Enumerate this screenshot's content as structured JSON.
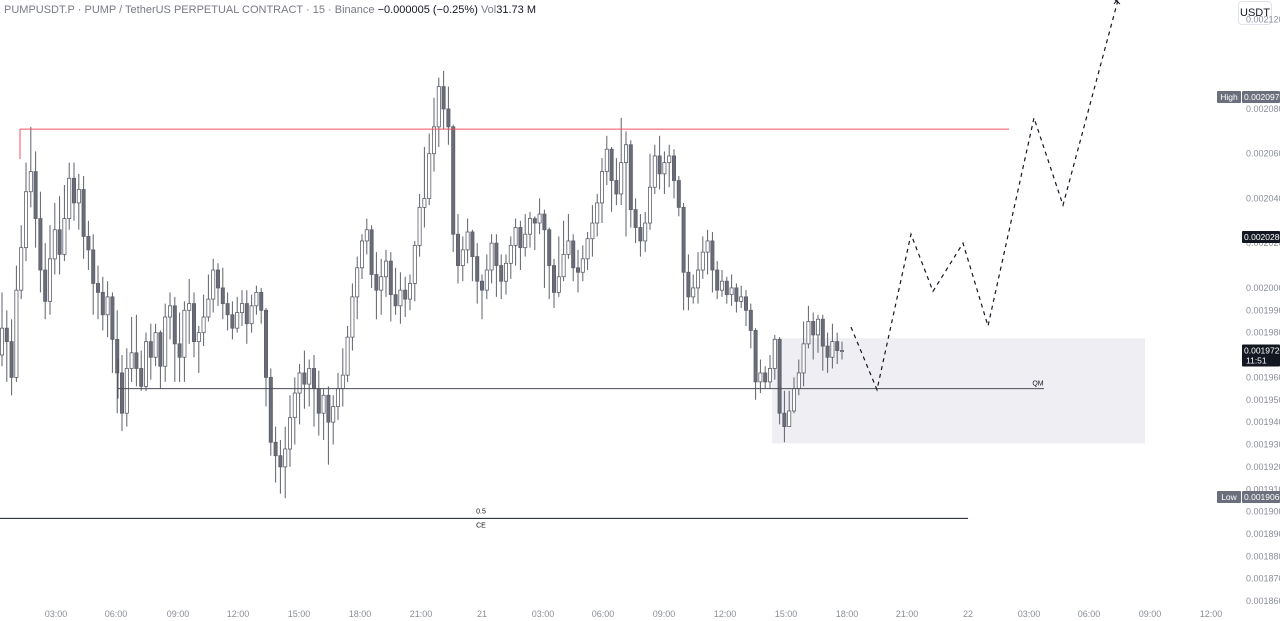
{
  "header": {
    "symbol": "PUMPUSDT.P",
    "separator1": " · ",
    "pair": "PUMP / TetherUS PERPETUAL CONTRACT",
    "separator2": " · ",
    "interval": "15",
    "separator3": " · ",
    "exchange": "Binance",
    "change": "−0.000005 (−0.25%)",
    "vol_label": "Vol",
    "vol_value": "31.73 M"
  },
  "currency_button": "USDT",
  "chart_data": {
    "type": "candlestick",
    "ylim": [
      0.0018605,
      0.0021287
    ],
    "price_axis_ticks": [
      "0.0021200",
      "0.0020800",
      "0.0020600",
      "0.0020400",
      "0.0020200",
      "0.0020000",
      "0.0019900",
      "0.0019800",
      "0.0019600",
      "0.0019500",
      "0.0019400",
      "0.0019300",
      "0.0019200",
      "0.0019100",
      "0.0019000",
      "0.0018900",
      "0.0018800",
      "0.0018700",
      "0.0018600"
    ],
    "time_axis_ticks": [
      "03:00",
      "06:00",
      "09:00",
      "12:00",
      "15:00",
      "18:00",
      "21:00",
      "21",
      "03:00",
      "06:00",
      "09:00",
      "12:00",
      "15:00",
      "18:00",
      "21:00",
      "22",
      "03:00",
      "06:00",
      "09:00",
      "12:00"
    ],
    "price_tags": {
      "high": {
        "label": "High",
        "value": "0.0020970"
      },
      "level": {
        "value": "0.0020280"
      },
      "current": {
        "value": "0.0019720",
        "countdown": "11:51"
      },
      "low": {
        "label": "Low",
        "value": "0.0019060"
      }
    },
    "annotations": {
      "resistance_price": 0.002071,
      "support_price": 0.001955,
      "support_label": "QM",
      "ce_price": 0.001897,
      "ce_label_top": "0.5",
      "ce_label_bottom": "CE",
      "zone_top": 0.0019775,
      "zone_bottom": 0.0019305,
      "projection_prices": [
        0.0019825,
        0.0019545,
        0.002024,
        0.0019985,
        0.00202,
        0.001983,
        0.002076,
        0.002037,
        0.0021287
      ]
    },
    "candles": [
      [
        0.00197,
        0.001982,
        0.001998,
        0.001965
      ],
      [
        0.001982,
        0.001976,
        0.00199,
        0.001958
      ],
      [
        0.001976,
        0.00196,
        0.001986,
        0.001952
      ],
      [
        0.00196,
        0.001999,
        0.00201,
        0.001958
      ],
      [
        0.001999,
        0.002018,
        0.002028,
        0.001995
      ],
      [
        0.002018,
        0.002043,
        0.002056,
        0.002012
      ],
      [
        0.002043,
        0.002052,
        0.002072,
        0.002036
      ],
      [
        0.002052,
        0.002031,
        0.002061,
        0.002018
      ],
      [
        0.002031,
        0.002008,
        0.002043,
        0.001998
      ],
      [
        0.002008,
        0.001994,
        0.00202,
        0.001986
      ],
      [
        0.001994,
        0.002013,
        0.002028,
        0.001988
      ],
      [
        0.002013,
        0.002026,
        0.002038,
        0.002006
      ],
      [
        0.002026,
        0.002015,
        0.002041,
        0.002006
      ],
      [
        0.002015,
        0.002031,
        0.002046,
        0.002012
      ],
      [
        0.002031,
        0.002049,
        0.002056,
        0.002026
      ],
      [
        0.002049,
        0.002038,
        0.002056,
        0.00203
      ],
      [
        0.002038,
        0.002044,
        0.002051,
        0.002026
      ],
      [
        0.002044,
        0.002023,
        0.00205,
        0.002013
      ],
      [
        0.002023,
        0.002017,
        0.00203,
        0.002008
      ],
      [
        0.002017,
        0.002002,
        0.002024,
        0.001988
      ],
      [
        0.002002,
        0.001998,
        0.00201,
        0.001986
      ],
      [
        0.001998,
        0.001988,
        0.002005,
        0.001981
      ],
      [
        0.001988,
        0.001996,
        0.002003,
        0.001978
      ],
      [
        0.001996,
        0.001977,
        0.001998,
        0.001962
      ],
      [
        0.001977,
        0.001962,
        0.00199,
        0.001944
      ],
      [
        0.001962,
        0.001944,
        0.00197,
        0.001936
      ],
      [
        0.001944,
        0.001964,
        0.001973,
        0.001938
      ],
      [
        0.001964,
        0.001971,
        0.001987,
        0.001958
      ],
      [
        0.001971,
        0.001964,
        0.001988,
        0.001956
      ],
      [
        0.001964,
        0.001956,
        0.001972,
        0.001954
      ],
      [
        0.001956,
        0.001976,
        0.00198,
        0.001954
      ],
      [
        0.001976,
        0.001969,
        0.001984,
        0.001959
      ],
      [
        0.001969,
        0.00198,
        0.001984,
        0.001965
      ],
      [
        0.00198,
        0.001965,
        0.001981,
        0.001955
      ],
      [
        0.001965,
        0.001987,
        0.001993,
        0.001958
      ],
      [
        0.001987,
        0.001992,
        0.001998,
        0.001977
      ],
      [
        0.001992,
        0.001975,
        0.001996,
        0.001958
      ],
      [
        0.001975,
        0.001969,
        0.001989,
        0.001958
      ],
      [
        0.001969,
        0.00199,
        0.001994,
        0.001958
      ],
      [
        0.00199,
        0.001993,
        0.002004,
        0.001975
      ],
      [
        0.001993,
        0.001976,
        0.001998,
        0.001969
      ],
      [
        0.001976,
        0.00198,
        0.001983,
        0.001962
      ],
      [
        0.00198,
        0.001987,
        0.001997,
        0.001974
      ],
      [
        0.001987,
        0.001995,
        0.002006,
        0.001985
      ],
      [
        0.001995,
        0.002008,
        0.002013,
        0.001989
      ],
      [
        0.002008,
        0.002,
        0.002011,
        0.001992
      ],
      [
        0.002,
        0.001993,
        0.002009,
        0.001986
      ],
      [
        0.001993,
        0.001988,
        0.001998,
        0.001981
      ],
      [
        0.001988,
        0.001982,
        0.001994,
        0.001977
      ],
      [
        0.001982,
        0.001989,
        0.001996,
        0.00198
      ],
      [
        0.001989,
        0.001993,
        0.001999,
        0.001983
      ],
      [
        0.001993,
        0.001984,
        0.001999,
        0.001975
      ],
      [
        0.001984,
        0.001992,
        0.001997,
        0.00198
      ],
      [
        0.001992,
        0.001998,
        0.002001,
        0.001988
      ],
      [
        0.001998,
        0.00199,
        0.002,
        0.001984
      ],
      [
        0.00199,
        0.00196,
        0.001991,
        0.001947
      ],
      [
        0.00196,
        0.001931,
        0.001964,
        0.001925
      ],
      [
        0.001931,
        0.001925,
        0.001938,
        0.001913
      ],
      [
        0.001925,
        0.00192,
        0.001932,
        0.001908
      ],
      [
        0.00192,
        0.001928,
        0.001938,
        0.001906
      ],
      [
        0.001928,
        0.001942,
        0.001952,
        0.00192
      ],
      [
        0.001942,
        0.001953,
        0.00196,
        0.00193
      ],
      [
        0.001953,
        0.001962,
        0.001966,
        0.001939
      ],
      [
        0.001962,
        0.001957,
        0.001972,
        0.001946
      ],
      [
        0.001957,
        0.001964,
        0.001968,
        0.001947
      ],
      [
        0.001964,
        0.001955,
        0.00197,
        0.001938
      ],
      [
        0.001955,
        0.001944,
        0.001963,
        0.001934
      ],
      [
        0.001944,
        0.001952,
        0.001955,
        0.001932
      ],
      [
        0.001952,
        0.00194,
        0.001956,
        0.001921
      ],
      [
        0.00194,
        0.001947,
        0.001952,
        0.00193
      ],
      [
        0.001947,
        0.001955,
        0.001962,
        0.001941
      ],
      [
        0.001955,
        0.001961,
        0.001973,
        0.001947
      ],
      [
        0.001961,
        0.001978,
        0.001983,
        0.001958
      ],
      [
        0.001978,
        0.001996,
        0.002002,
        0.001972
      ],
      [
        0.001996,
        0.002009,
        0.002014,
        0.001986
      ],
      [
        0.002009,
        0.002021,
        0.002024,
        0.002004
      ],
      [
        0.002021,
        0.002026,
        0.002031,
        0.002015
      ],
      [
        0.002026,
        0.002006,
        0.002028,
        0.002
      ],
      [
        0.002006,
        0.001999,
        0.002016,
        0.001986
      ],
      [
        0.001999,
        0.002005,
        0.002013,
        0.001988
      ],
      [
        0.002005,
        0.002012,
        0.002017,
        0.001996
      ],
      [
        0.002012,
        0.001997,
        0.002016,
        0.001985
      ],
      [
        0.001997,
        0.001992,
        0.002009,
        0.001988
      ],
      [
        0.001992,
        0.001999,
        0.002007,
        0.001984
      ],
      [
        0.001999,
        0.001995,
        0.002005,
        0.001987
      ],
      [
        0.001995,
        0.002002,
        0.002006,
        0.00199
      ],
      [
        0.002002,
        0.002019,
        0.002021,
        0.001994
      ],
      [
        0.002019,
        0.002036,
        0.002042,
        0.002014
      ],
      [
        0.002036,
        0.00204,
        0.002063,
        0.002027
      ],
      [
        0.00204,
        0.00206,
        0.002069,
        0.002037
      ],
      [
        0.00206,
        0.002072,
        0.002085,
        0.002052
      ],
      [
        0.002072,
        0.00209,
        0.002094,
        0.002063
      ],
      [
        0.00209,
        0.00208,
        0.002097,
        0.002071
      ],
      [
        0.00208,
        0.002072,
        0.00209,
        0.002064
      ],
      [
        0.002072,
        0.002024,
        0.002073,
        0.002016
      ],
      [
        0.002024,
        0.00201,
        0.002033,
        0.002002
      ],
      [
        0.00201,
        0.002017,
        0.002023,
        0.002003
      ],
      [
        0.002017,
        0.002025,
        0.002031,
        0.002011
      ],
      [
        0.002025,
        0.002014,
        0.002026,
        0.002003
      ],
      [
        0.002014,
        0.002003,
        0.00202,
        0.001993
      ],
      [
        0.002003,
        0.001999,
        0.002006,
        0.001986
      ],
      [
        0.001999,
        0.002008,
        0.002015,
        0.001995
      ],
      [
        0.002008,
        0.00202,
        0.002024,
        0.002002
      ],
      [
        0.00202,
        0.00201,
        0.002024,
        0.001996
      ],
      [
        0.00201,
        0.002003,
        0.002015,
        0.001995
      ],
      [
        0.002003,
        0.002011,
        0.002015,
        0.001997
      ],
      [
        0.002011,
        0.002019,
        0.002023,
        0.002004
      ],
      [
        0.002019,
        0.002027,
        0.002031,
        0.00201
      ],
      [
        0.002027,
        0.002018,
        0.00203,
        0.002008
      ],
      [
        0.002018,
        0.002024,
        0.002033,
        0.002014
      ],
      [
        0.002024,
        0.002031,
        0.002034,
        0.002018
      ],
      [
        0.002031,
        0.002029,
        0.002032,
        0.002017
      ],
      [
        0.002029,
        0.002033,
        0.00204,
        0.002024
      ],
      [
        0.002033,
        0.002026,
        0.002035,
        0.002
      ],
      [
        0.002026,
        0.00201,
        0.002027,
        0.001995
      ],
      [
        0.00201,
        0.001998,
        0.002013,
        0.001991
      ],
      [
        0.001998,
        0.002005,
        0.002023,
        0.001996
      ],
      [
        0.002005,
        0.002015,
        0.00203,
        0.002003
      ],
      [
        0.002015,
        0.002021,
        0.002033,
        0.002013
      ],
      [
        0.002021,
        0.002009,
        0.002024,
        0.002003
      ],
      [
        0.002009,
        0.002007,
        0.002017,
        0.001998
      ],
      [
        0.002007,
        0.002013,
        0.002019,
        0.002003
      ],
      [
        0.002013,
        0.002022,
        0.002025,
        0.002008
      ],
      [
        0.002022,
        0.002029,
        0.002037,
        0.002014
      ],
      [
        0.002029,
        0.002038,
        0.002042,
        0.002023
      ],
      [
        0.002038,
        0.002052,
        0.002058,
        0.002029
      ],
      [
        0.002052,
        0.002062,
        0.002068,
        0.002046
      ],
      [
        0.002062,
        0.002048,
        0.002063,
        0.002034
      ],
      [
        0.002048,
        0.002042,
        0.002058,
        0.002037
      ],
      [
        0.002042,
        0.002056,
        0.002076,
        0.002037
      ],
      [
        0.002056,
        0.002064,
        0.00207,
        0.002023
      ],
      [
        0.002064,
        0.002035,
        0.002066,
        0.002027
      ],
      [
        0.002035,
        0.002027,
        0.00204,
        0.00202
      ],
      [
        0.002027,
        0.002021,
        0.002033,
        0.002014
      ],
      [
        0.002021,
        0.002029,
        0.002034,
        0.002016
      ],
      [
        0.002029,
        0.002045,
        0.00206,
        0.002026
      ],
      [
        0.002045,
        0.002059,
        0.002064,
        0.002042
      ],
      [
        0.002059,
        0.002051,
        0.002068,
        0.002044
      ],
      [
        0.002051,
        0.002056,
        0.002061,
        0.002042
      ],
      [
        0.002056,
        0.002059,
        0.002064,
        0.002045
      ],
      [
        0.002059,
        0.002048,
        0.002062,
        0.00204
      ],
      [
        0.002048,
        0.002036,
        0.00205,
        0.002032
      ],
      [
        0.002036,
        0.002007,
        0.002038,
        0.00199
      ],
      [
        0.002007,
        0.001996,
        0.002015,
        0.00199
      ],
      [
        0.001996,
        0.002,
        0.002006,
        0.001993
      ],
      [
        0.002,
        0.002008,
        0.002016,
        0.001993
      ],
      [
        0.002008,
        0.002016,
        0.002023,
        0.002004
      ],
      [
        0.002016,
        0.002021,
        0.002026,
        0.002006
      ],
      [
        0.002021,
        0.002008,
        0.002025,
        0.001998
      ],
      [
        0.002008,
        0.001999,
        0.002012,
        0.001995
      ],
      [
        0.001999,
        0.002003,
        0.002008,
        0.001996
      ],
      [
        0.002003,
        0.001997,
        0.002005,
        0.001993
      ],
      [
        0.001997,
        0.002,
        0.002006,
        0.001992
      ],
      [
        0.002,
        0.001994,
        0.002002,
        0.001989
      ],
      [
        0.001994,
        0.001996,
        0.002001,
        0.001991
      ],
      [
        0.001996,
        0.00199,
        0.001999,
        0.001983
      ],
      [
        0.00199,
        0.001981,
        0.001993,
        0.001973
      ],
      [
        0.001981,
        0.001958,
        0.001982,
        0.00195
      ],
      [
        0.001958,
        0.001962,
        0.001968,
        0.001953
      ],
      [
        0.001962,
        0.001958,
        0.001965,
        0.001955
      ],
      [
        0.001958,
        0.001964,
        0.00197,
        0.001955
      ],
      [
        0.001964,
        0.001977,
        0.001979,
        0.001959
      ],
      [
        0.001977,
        0.001944,
        0.001978,
        0.001939
      ],
      [
        0.001944,
        0.001938,
        0.001954,
        0.001931
      ],
      [
        0.001938,
        0.001945,
        0.001954,
        0.00194
      ],
      [
        0.001945,
        0.001955,
        0.00196,
        0.001944
      ],
      [
        0.001955,
        0.001962,
        0.001968,
        0.001952
      ],
      [
        0.001962,
        0.001975,
        0.001985,
        0.001956
      ],
      [
        0.001975,
        0.001985,
        0.001992,
        0.001973
      ],
      [
        0.001985,
        0.001979,
        0.001989,
        0.001968
      ],
      [
        0.001979,
        0.001986,
        0.001988,
        0.001971
      ],
      [
        0.001986,
        0.001974,
        0.001988,
        0.001963
      ],
      [
        0.001974,
        0.001969,
        0.00198,
        0.001962
      ],
      [
        0.001969,
        0.001976,
        0.001984,
        0.001964
      ],
      [
        0.001976,
        0.001972,
        0.00198,
        0.001966
      ],
      [
        0.001972,
        0.001972,
        0.001976,
        0.001968
      ]
    ]
  }
}
